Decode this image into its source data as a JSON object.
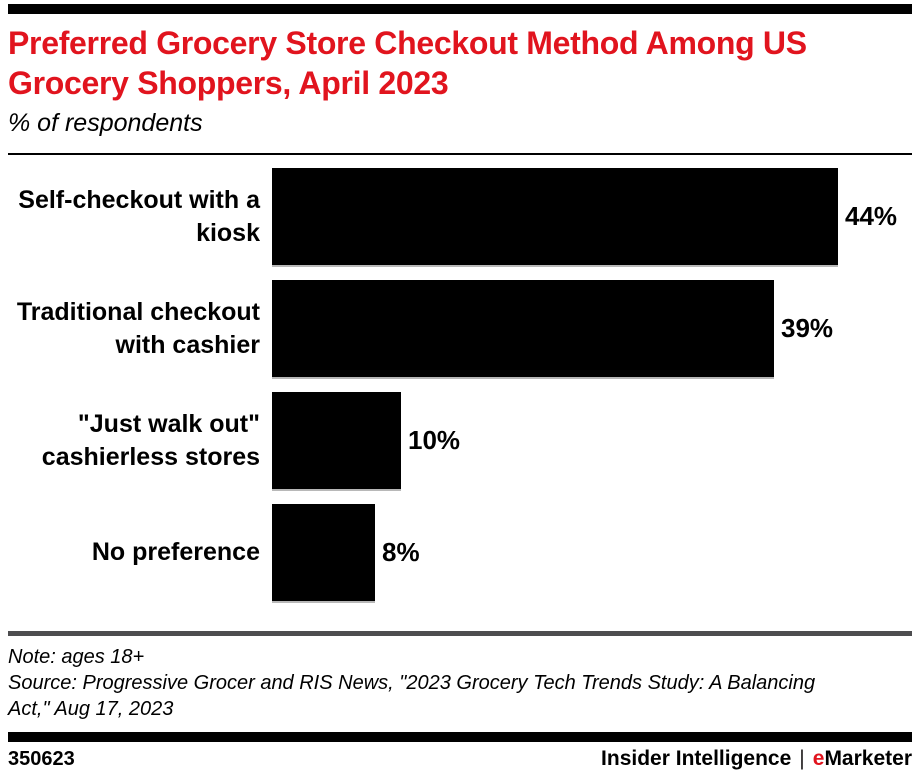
{
  "meta": {
    "accent_red": "#e1141e",
    "bar_color": "#000000",
    "divider_gray": "#4d4d4f"
  },
  "header": {
    "title": "Preferred Grocery Store Checkout Method Among US Grocery Shoppers, April 2023",
    "subtitle": "% of respondents"
  },
  "chart_data": {
    "type": "bar",
    "orientation": "horizontal",
    "title": "Preferred Grocery Store Checkout Method Among US Grocery Shoppers, April 2023",
    "unit": "% of respondents",
    "categories": [
      "Self-checkout with a kiosk",
      "Traditional checkout with cashier",
      "\"Just walk out\" cashierless stores",
      "No preference"
    ],
    "values": [
      44,
      39,
      10,
      8
    ],
    "value_labels": [
      "44%",
      "39%",
      "10%",
      "8%"
    ],
    "xlim": [
      0,
      50
    ],
    "bar_color": "#000000",
    "grid": false,
    "legend": "none",
    "value_label_position": "outside-end"
  },
  "footnote": {
    "note": "Note: ages 18+",
    "source": "Source: Progressive Grocer and RIS News, \"2023 Grocery Tech Trends Study: A Balancing Act,\" Aug 17, 2023"
  },
  "footer": {
    "chart_id": "350623",
    "brand_insider": "Insider Intelligence",
    "separator": "|",
    "brand_e": "e",
    "brand_marketer": "Marketer"
  }
}
